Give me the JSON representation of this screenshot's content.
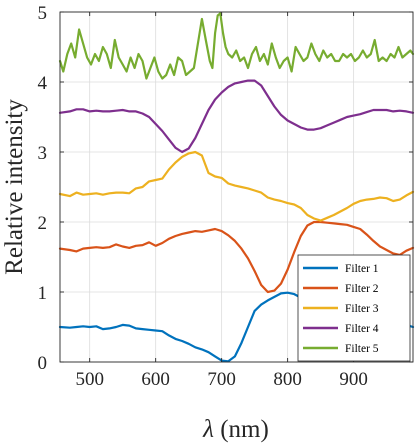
{
  "chart_data": {
    "type": "line",
    "title": "",
    "xlabel_symbol": "λ",
    "xlabel_unit": " (nm)",
    "ylabel": "Relative intensity",
    "xlim": [
      455,
      990
    ],
    "ylim": [
      0,
      5
    ],
    "xticks": [
      500,
      600,
      700,
      800,
      900
    ],
    "yticks": [
      0,
      1,
      2,
      3,
      4,
      5
    ],
    "grid": true,
    "legend_position": "bottom-right",
    "series": [
      {
        "name": "Filter 1",
        "color": "#0072BD",
        "x": [
          455,
          470,
          480,
          490,
          500,
          510,
          520,
          530,
          540,
          550,
          560,
          570,
          580,
          590,
          600,
          610,
          620,
          630,
          640,
          650,
          660,
          670,
          680,
          690,
          700,
          710,
          720,
          730,
          740,
          750,
          760,
          770,
          780,
          790,
          800,
          810,
          820,
          830,
          840,
          850,
          860,
          870,
          880,
          890,
          900,
          910,
          920,
          930,
          940,
          950,
          960,
          970,
          980,
          990
        ],
        "y": [
          0.5,
          0.49,
          0.5,
          0.51,
          0.5,
          0.51,
          0.47,
          0.48,
          0.5,
          0.53,
          0.52,
          0.48,
          0.47,
          0.46,
          0.45,
          0.44,
          0.38,
          0.33,
          0.3,
          0.26,
          0.21,
          0.18,
          0.14,
          0.08,
          0.02,
          0.01,
          0.08,
          0.27,
          0.5,
          0.73,
          0.82,
          0.88,
          0.93,
          0.98,
          0.99,
          0.97,
          0.92,
          0.85,
          0.78,
          0.72,
          0.66,
          0.62,
          0.59,
          0.57,
          0.55,
          0.54,
          0.53,
          0.53,
          0.54,
          0.53,
          0.53,
          0.54,
          0.53,
          0.5
        ]
      },
      {
        "name": "Filter 2",
        "color": "#D95319",
        "x": [
          455,
          470,
          480,
          490,
          500,
          510,
          520,
          530,
          540,
          550,
          560,
          570,
          580,
          590,
          600,
          610,
          620,
          630,
          640,
          650,
          660,
          670,
          680,
          690,
          700,
          710,
          720,
          730,
          740,
          750,
          760,
          770,
          780,
          790,
          800,
          810,
          820,
          830,
          840,
          850,
          860,
          870,
          880,
          890,
          900,
          910,
          920,
          930,
          940,
          950,
          960,
          970,
          980,
          990
        ],
        "y": [
          1.62,
          1.6,
          1.58,
          1.62,
          1.63,
          1.64,
          1.63,
          1.64,
          1.68,
          1.65,
          1.63,
          1.66,
          1.67,
          1.71,
          1.66,
          1.7,
          1.76,
          1.8,
          1.83,
          1.85,
          1.87,
          1.86,
          1.88,
          1.9,
          1.87,
          1.81,
          1.73,
          1.62,
          1.48,
          1.3,
          1.1,
          1.0,
          1.02,
          1.12,
          1.32,
          1.57,
          1.8,
          1.95,
          2.0,
          2.0,
          1.99,
          1.98,
          1.97,
          1.96,
          1.93,
          1.9,
          1.82,
          1.73,
          1.65,
          1.6,
          1.55,
          1.53,
          1.59,
          1.63
        ]
      },
      {
        "name": "Filter 3",
        "color": "#EDB120",
        "x": [
          455,
          470,
          480,
          490,
          500,
          510,
          520,
          530,
          540,
          550,
          560,
          570,
          580,
          590,
          600,
          610,
          620,
          630,
          640,
          650,
          660,
          670,
          680,
          690,
          700,
          710,
          720,
          730,
          740,
          750,
          760,
          770,
          780,
          790,
          800,
          810,
          820,
          830,
          840,
          850,
          860,
          870,
          880,
          890,
          900,
          910,
          920,
          930,
          940,
          950,
          960,
          970,
          980,
          990
        ],
        "y": [
          2.4,
          2.37,
          2.42,
          2.39,
          2.4,
          2.41,
          2.39,
          2.41,
          2.42,
          2.42,
          2.41,
          2.48,
          2.5,
          2.58,
          2.6,
          2.62,
          2.75,
          2.85,
          2.93,
          2.98,
          3.0,
          2.95,
          2.7,
          2.65,
          2.63,
          2.55,
          2.52,
          2.5,
          2.48,
          2.45,
          2.42,
          2.35,
          2.32,
          2.3,
          2.27,
          2.25,
          2.2,
          2.1,
          2.05,
          2.02,
          2.06,
          2.1,
          2.15,
          2.2,
          2.26,
          2.3,
          2.32,
          2.33,
          2.35,
          2.34,
          2.3,
          2.32,
          2.38,
          2.43
        ]
      },
      {
        "name": "Filter 4",
        "color": "#7E2F8E",
        "x": [
          455,
          470,
          480,
          490,
          500,
          510,
          520,
          530,
          540,
          550,
          560,
          570,
          580,
          590,
          600,
          610,
          620,
          630,
          640,
          650,
          660,
          670,
          680,
          690,
          700,
          710,
          720,
          730,
          740,
          750,
          760,
          770,
          780,
          790,
          800,
          810,
          820,
          830,
          840,
          850,
          860,
          870,
          880,
          890,
          900,
          910,
          920,
          930,
          940,
          950,
          960,
          970,
          980,
          990
        ],
        "y": [
          3.56,
          3.58,
          3.61,
          3.61,
          3.58,
          3.59,
          3.58,
          3.58,
          3.59,
          3.6,
          3.58,
          3.58,
          3.55,
          3.5,
          3.4,
          3.3,
          3.18,
          3.06,
          3.0,
          3.05,
          3.2,
          3.4,
          3.6,
          3.75,
          3.85,
          3.93,
          3.98,
          4.0,
          4.02,
          4.02,
          3.95,
          3.8,
          3.65,
          3.53,
          3.45,
          3.4,
          3.35,
          3.32,
          3.32,
          3.34,
          3.38,
          3.42,
          3.46,
          3.5,
          3.52,
          3.54,
          3.57,
          3.6,
          3.6,
          3.6,
          3.58,
          3.59,
          3.58,
          3.56
        ]
      },
      {
        "name": "Filter 5",
        "color": "#77AC30",
        "x": [
          455,
          460,
          466,
          472,
          478,
          484,
          490,
          496,
          502,
          508,
          514,
          520,
          526,
          532,
          538,
          544,
          550,
          556,
          562,
          568,
          574,
          580,
          586,
          592,
          598,
          604,
          610,
          616,
          622,
          628,
          634,
          640,
          646,
          652,
          658,
          664,
          670,
          676,
          682,
          686,
          690,
          694,
          698,
          702,
          706,
          710,
          716,
          722,
          728,
          734,
          740,
          746,
          752,
          758,
          764,
          770,
          776,
          782,
          788,
          794,
          800,
          806,
          812,
          818,
          824,
          830,
          836,
          842,
          848,
          854,
          860,
          866,
          872,
          878,
          884,
          890,
          896,
          902,
          908,
          914,
          920,
          926,
          932,
          938,
          944,
          950,
          956,
          962,
          968,
          974,
          980,
          986,
          990
        ],
        "y": [
          4.3,
          4.15,
          4.4,
          4.55,
          4.35,
          4.75,
          4.55,
          4.35,
          4.25,
          4.4,
          4.3,
          4.5,
          4.4,
          4.2,
          4.6,
          4.35,
          4.25,
          4.15,
          4.35,
          4.2,
          4.4,
          4.3,
          4.05,
          4.2,
          4.35,
          4.15,
          4.05,
          4.1,
          4.25,
          4.1,
          4.35,
          4.3,
          4.1,
          4.15,
          4.2,
          4.55,
          4.9,
          4.6,
          4.3,
          4.2,
          4.7,
          4.95,
          4.98,
          4.7,
          4.5,
          4.4,
          4.35,
          4.45,
          4.3,
          4.35,
          4.2,
          4.4,
          4.5,
          4.3,
          4.4,
          4.25,
          4.55,
          4.35,
          4.2,
          4.3,
          4.35,
          4.15,
          4.5,
          4.4,
          4.3,
          4.35,
          4.55,
          4.4,
          4.3,
          4.45,
          4.35,
          4.4,
          4.3,
          4.3,
          4.4,
          4.35,
          4.4,
          4.3,
          4.35,
          4.45,
          4.35,
          4.4,
          4.6,
          4.3,
          4.35,
          4.3,
          4.4,
          4.35,
          4.5,
          4.35,
          4.4,
          4.45,
          4.4
        ]
      }
    ]
  }
}
